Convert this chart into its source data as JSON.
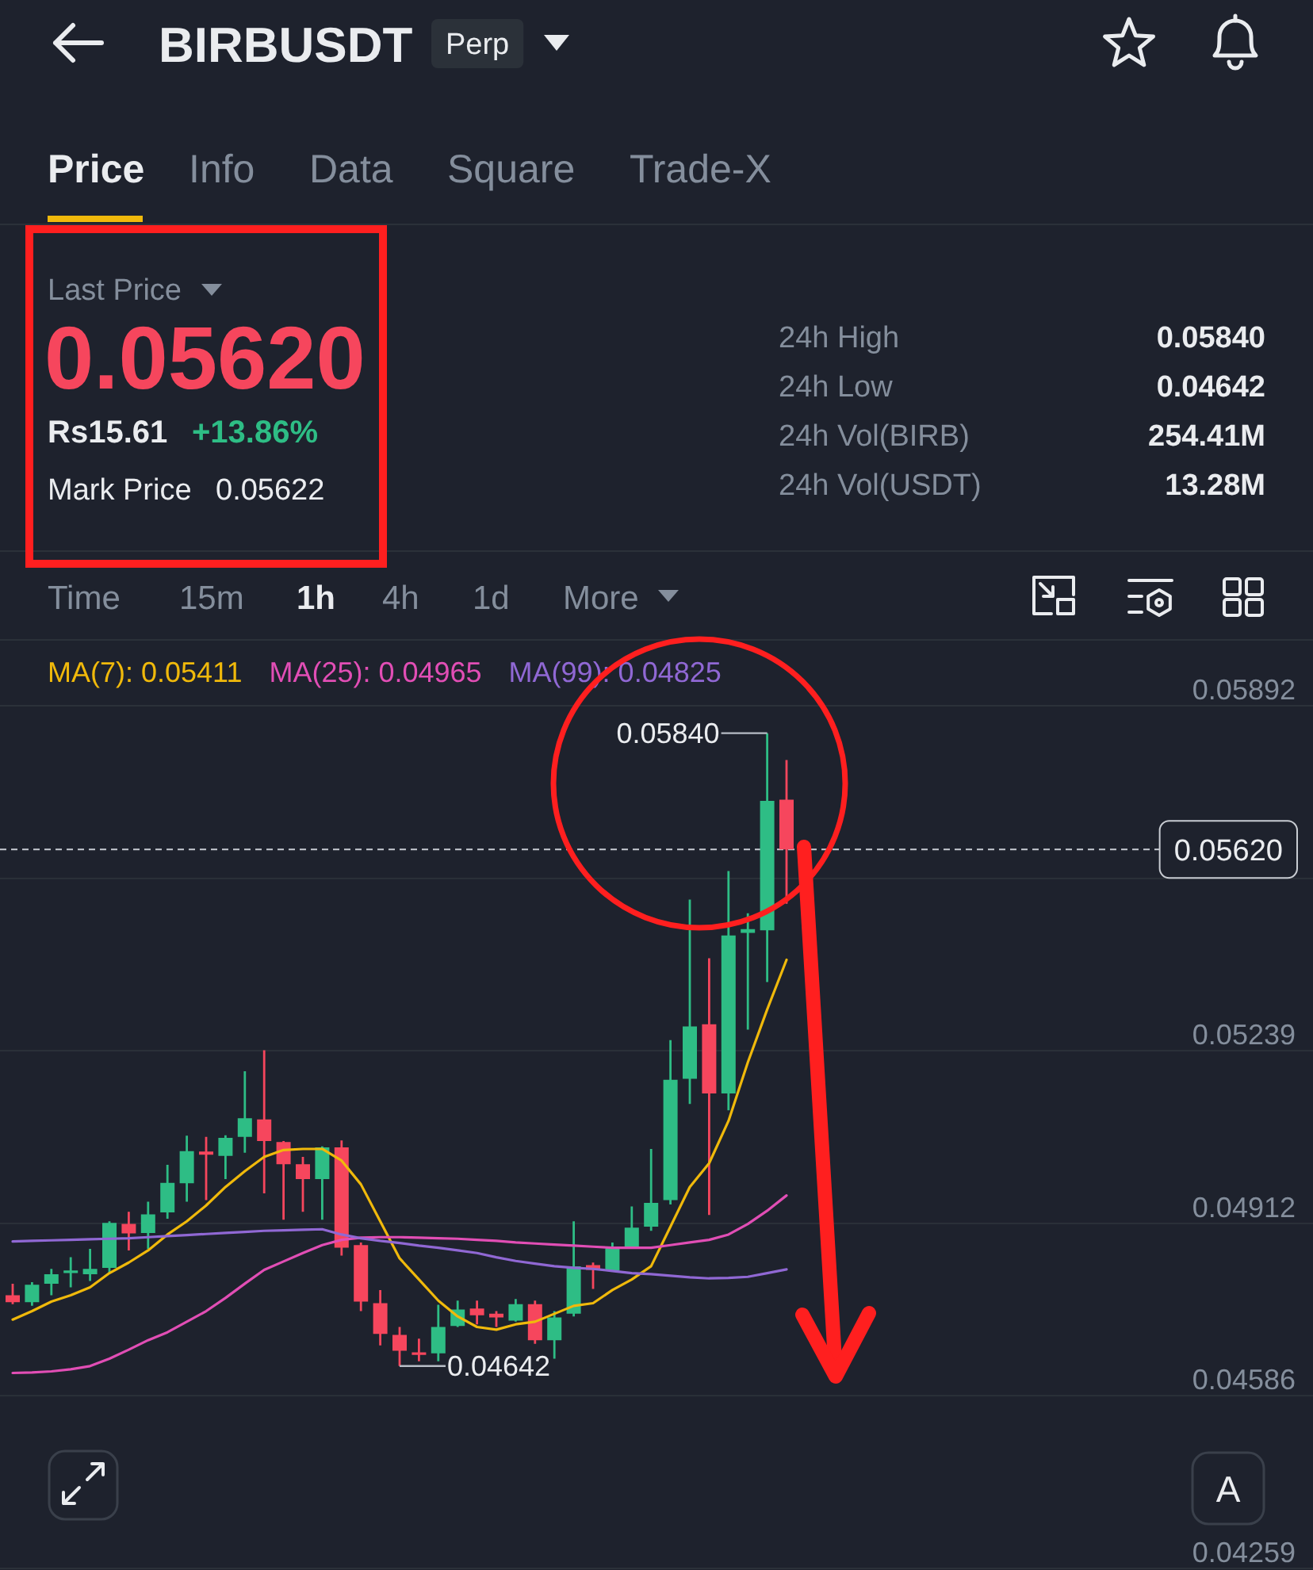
{
  "chart_data": [
    {
      "type": "other",
      "title": "BIRBUSDT",
      "subtitle": "Perp",
      "annotations": [
        "Price",
        "Info",
        "Data",
        "Square",
        "Trade-X",
        "Last Price",
        "0.05620",
        "Rs15.61",
        "+13.86%",
        "Mark Price",
        "0.05622",
        "24h High",
        "0.05840",
        "24h Low",
        "0.04642",
        "24h Vol(BIRB)",
        "254.41M",
        "24h Vol(USDT)",
        "13.28M",
        "Time",
        "15m",
        "1h",
        "4h",
        "1d",
        "More"
      ]
    },
    {
      "type": "candlestick",
      "categories": [
        null,
        null,
        null,
        null,
        null,
        null,
        null,
        null,
        null,
        null,
        null,
        null,
        null,
        null,
        null,
        null,
        null,
        null,
        null,
        null,
        null,
        null,
        null,
        null,
        null,
        null,
        null,
        null,
        null,
        null,
        null,
        null,
        null,
        null,
        null,
        null,
        null,
        null,
        null,
        null,
        null
      ],
      "ohlc": [
        [
          0.04776,
          0.04798,
          0.04759,
          0.04763
        ],
        [
          0.04763,
          0.04801,
          0.04756,
          0.04796
        ],
        [
          0.04798,
          0.04826,
          0.04776,
          0.04816
        ],
        [
          0.04818,
          0.04848,
          0.04791,
          0.04823
        ],
        [
          0.04816,
          0.04864,
          0.04803,
          0.04826
        ],
        [
          0.04828,
          0.04916,
          0.04818,
          0.04913
        ],
        [
          0.04911,
          0.04934,
          0.04861,
          0.04893
        ],
        [
          0.04894,
          0.04953,
          0.04864,
          0.04929
        ],
        [
          0.04933,
          0.05023,
          0.04921,
          0.04989
        ],
        [
          0.04988,
          0.05078,
          0.04953,
          0.05049
        ],
        [
          0.05048,
          0.05076,
          0.04956,
          0.05042
        ],
        [
          0.0504,
          0.05079,
          0.04996,
          0.05074
        ],
        [
          0.05076,
          0.052,
          0.05046,
          0.05111
        ],
        [
          0.05109,
          0.0524,
          0.04969,
          0.05068
        ],
        [
          0.05066,
          0.05068,
          0.04919,
          0.05024
        ],
        [
          0.05024,
          0.05038,
          0.04934,
          0.04996
        ],
        [
          0.04996,
          0.05058,
          0.04919,
          0.05056
        ],
        [
          0.05056,
          0.05069,
          0.04851,
          0.04866
        ],
        [
          0.04871,
          0.04876,
          0.04746,
          0.04764
        ],
        [
          0.04761,
          0.04786,
          0.04681,
          0.04703
        ],
        [
          0.04701,
          0.04716,
          0.04642,
          0.04671
        ],
        [
          0.04668,
          0.04694,
          0.04651,
          0.04663
        ],
        [
          0.04666,
          0.04758,
          0.04651,
          0.04716
        ],
        [
          0.04718,
          0.04766,
          0.04716,
          0.04749
        ],
        [
          0.04751,
          0.04766,
          0.04721,
          0.04738
        ],
        [
          0.04741,
          0.04746,
          0.04716,
          0.04734
        ],
        [
          0.04728,
          0.04769,
          0.04726,
          0.04759
        ],
        [
          0.04759,
          0.04766,
          0.04684,
          0.04691
        ],
        [
          0.04691,
          0.04746,
          0.04656,
          0.04734
        ],
        [
          0.04741,
          0.04916,
          0.04736,
          0.04831
        ],
        [
          0.04833,
          0.04838,
          0.04788,
          0.04824
        ],
        [
          0.04823,
          0.04876,
          0.04821,
          0.04866
        ],
        [
          0.04866,
          0.04944,
          0.04864,
          0.04904
        ],
        [
          0.04906,
          0.05053,
          0.04898,
          0.04951
        ],
        [
          0.04956,
          0.05259,
          0.04948,
          0.05184
        ],
        [
          0.05186,
          0.05525,
          0.05138,
          0.05285
        ],
        [
          0.05289,
          0.05414,
          0.04928,
          0.05158
        ],
        [
          0.05158,
          0.05579,
          0.05126,
          0.05457
        ],
        [
          0.05462,
          0.05499,
          0.05279,
          0.05469
        ],
        [
          0.05467,
          0.0584,
          0.05369,
          0.05712
        ],
        [
          0.05714,
          0.05789,
          0.05517,
          0.0562
        ]
      ],
      "colors": [
        "#f6465d",
        "#2ebd85",
        "#2ebd85",
        "#2ebd85",
        "#2ebd85",
        "#2ebd85",
        "#f6465d",
        "#2ebd85",
        "#2ebd85",
        "#2ebd85",
        "#f6465d",
        "#2ebd85",
        "#2ebd85",
        "#f6465d",
        "#f6465d",
        "#f6465d",
        "#2ebd85",
        "#f6465d",
        "#f6465d",
        "#f6465d",
        "#f6465d",
        "#f6465d",
        "#2ebd85",
        "#2ebd85",
        "#f6465d",
        "#f6465d",
        "#2ebd85",
        "#f6465d",
        "#2ebd85",
        "#2ebd85",
        "#f6465d",
        "#2ebd85",
        "#2ebd85",
        "#2ebd85",
        "#2ebd85",
        "#2ebd85",
        "#f6465d",
        "#2ebd85",
        "#2ebd85",
        "#2ebd85",
        "#f6465d"
      ],
      "series": [
        {
          "type": "line",
          "name": "MA(7): 0.05411",
          "color": "#f0b90b",
          "values": [
            0.0473,
            0.04746,
            0.04764,
            0.04776,
            0.04791,
            0.04818,
            0.04838,
            0.04861,
            0.04891,
            0.04916,
            0.04946,
            0.04981,
            0.05011,
            0.05038,
            0.05051,
            0.05053,
            0.05053,
            0.05031,
            0.04986,
            0.04916,
            0.04846,
            0.04806,
            0.04766,
            0.04736,
            0.04716,
            0.04711,
            0.04721,
            0.04726,
            0.04741,
            0.04756,
            0.04761,
            0.04786,
            0.04806,
            0.04831,
            0.04906,
            0.04981,
            0.05026,
            0.05106,
            0.05217,
            0.05317,
            0.05411
          ]
        },
        {
          "type": "line",
          "name": "MA(25): 0.04965",
          "color": "#e14eb5",
          "values": [
            0.04629,
            0.0463,
            0.04632,
            0.04636,
            0.04642,
            0.04656,
            0.04673,
            0.04691,
            0.04706,
            0.04726,
            0.04746,
            0.04771,
            0.04798,
            0.04824,
            0.0484,
            0.04856,
            0.04871,
            0.04881,
            0.04885,
            0.04886,
            0.04886,
            0.04885,
            0.04884,
            0.04883,
            0.04881,
            0.04879,
            0.04876,
            0.04874,
            0.04872,
            0.0487,
            0.04868,
            0.04866,
            0.04866,
            0.04866,
            0.04871,
            0.04876,
            0.04881,
            0.04891,
            0.04911,
            0.04936,
            0.04965
          ]
        },
        {
          "type": "line",
          "name": "MA(99): 0.04825",
          "color": "#9068d4",
          "values": [
            0.04878,
            0.04879,
            0.0488,
            0.04881,
            0.04882,
            0.04883,
            0.04884,
            0.04886,
            0.04888,
            0.0489,
            0.04892,
            0.04894,
            0.04896,
            0.04898,
            0.04899,
            0.049,
            0.04901,
            0.04891,
            0.04884,
            0.04879,
            0.04875,
            0.0487,
            0.04866,
            0.04861,
            0.04856,
            0.04848,
            0.04841,
            0.04836,
            0.04831,
            0.04828,
            0.04826,
            0.04822,
            0.04818,
            0.04816,
            0.04813,
            0.0481,
            0.04808,
            0.04809,
            0.04811,
            0.04818,
            0.04825
          ]
        }
      ],
      "ylim": [
        0.04259,
        0.05892
      ],
      "yticks": [
        0.05892,
        {
          "value": 0.05565,
          "label": null
        },
        0.05239,
        0.04912,
        0.04586,
        0.04259
      ],
      "tick_labels": "y",
      "grid": "y",
      "legend": "top left",
      "ref_lines": [
        {
          "axis": "y",
          "value": 0.0562,
          "line_style": "dashed",
          "color": "#c8ccd2"
        }
      ],
      "annotations": [
        "0.05620",
        "0.05840",
        "0.04642",
        "A"
      ]
    }
  ]
}
